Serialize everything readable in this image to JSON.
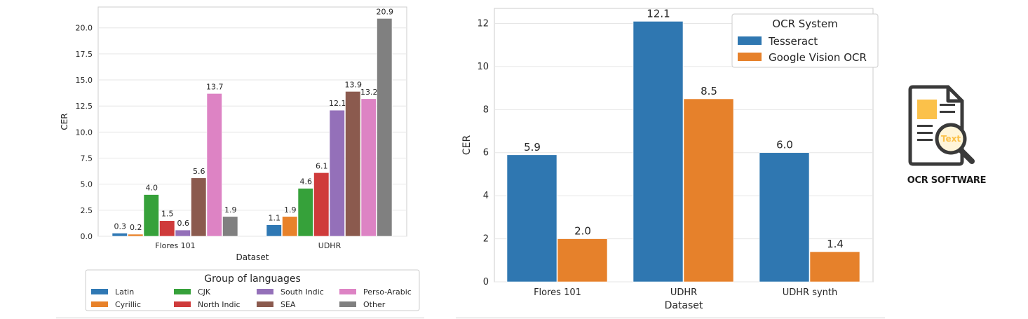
{
  "chart_data": [
    {
      "type": "bar",
      "xlabel": "Dataset",
      "ylabel": "CER",
      "categories": [
        "Flores 101",
        "UDHR"
      ],
      "ylim": [
        0,
        22
      ],
      "yticks": [
        "0.0",
        "2.5",
        "5.0",
        "7.5",
        "10.0",
        "12.5",
        "15.0",
        "17.5",
        "20.0"
      ],
      "grid": true,
      "legend_title": "Group of languages",
      "legend_position": "bottom",
      "series": [
        {
          "name": "Latin",
          "color": "#2f78b4",
          "values": [
            0.3,
            1.1
          ],
          "labels": [
            "0.3",
            "1.1"
          ]
        },
        {
          "name": "Cyrillic",
          "color": "#e8822a",
          "values": [
            0.2,
            1.9
          ],
          "labels": [
            "0.2",
            "1.9"
          ]
        },
        {
          "name": "CJK",
          "color": "#36a13a",
          "values": [
            4.0,
            4.6
          ],
          "labels": [
            "4.0",
            "4.6"
          ]
        },
        {
          "name": "North Indic",
          "color": "#cf3b3b",
          "values": [
            1.5,
            6.1
          ],
          "labels": [
            "1.5",
            "6.1"
          ]
        },
        {
          "name": "South Indic",
          "color": "#9470b9",
          "values": [
            0.6,
            12.1
          ],
          "labels": [
            "0.6",
            "12.1"
          ]
        },
        {
          "name": "SEA",
          "color": "#8b5a4e",
          "values": [
            5.6,
            13.9
          ],
          "labels": [
            "5.6",
            "13.9"
          ]
        },
        {
          "name": "Perso-Arabic",
          "color": "#dd83c4",
          "values": [
            13.7,
            13.2
          ],
          "labels": [
            "13.7",
            "13.2"
          ]
        },
        {
          "name": "Other",
          "color": "#808080",
          "values": [
            1.9,
            20.9
          ],
          "labels": [
            "1.9",
            "20.9"
          ]
        }
      ]
    },
    {
      "type": "bar",
      "xlabel": "Dataset",
      "ylabel": "CER",
      "categories": [
        "Flores 101",
        "UDHR",
        "UDHR synth"
      ],
      "ylim": [
        0,
        12.7
      ],
      "yticks": [
        "0",
        "2",
        "4",
        "6",
        "8",
        "10",
        "12"
      ],
      "grid": true,
      "legend_title": "OCR System",
      "legend_position": "top-right",
      "series": [
        {
          "name": "Tesseract",
          "color": "#2f77b1",
          "values": [
            5.9,
            12.1,
            6.0
          ],
          "labels": [
            "5.9",
            "12.1",
            "6.0"
          ]
        },
        {
          "name": "Google Vision OCR",
          "color": "#e6812b",
          "values": [
            2.0,
            8.5,
            1.4
          ],
          "labels": [
            "2.0",
            "8.5",
            "1.4"
          ]
        }
      ]
    }
  ],
  "icon": {
    "name": "ocr-software-icon",
    "glyph_text": "Text",
    "caption": "OCR SOFTWARE"
  }
}
